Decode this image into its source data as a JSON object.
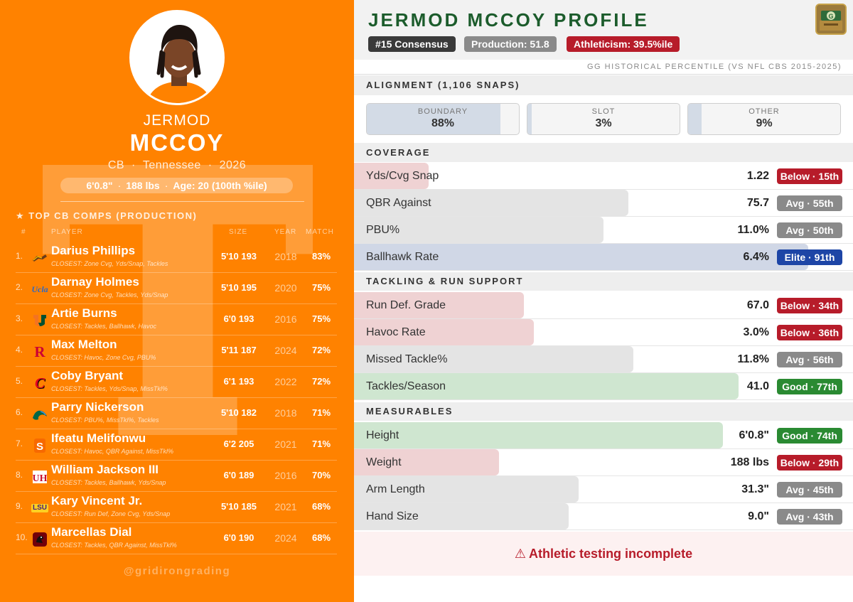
{
  "player": {
    "first_name": "JERMOD",
    "last_name": "MCCOY",
    "position": "CB",
    "school": "Tennessee",
    "class_year": "2026",
    "height": "6'0.8\"",
    "weight": "188 lbs",
    "age": "Age: 20 (100th %ile)"
  },
  "comps": {
    "title": "★ TOP CB COMPS (PRODUCTION)",
    "headers": {
      "num": "#",
      "player": "PLAYER",
      "size": "SIZE",
      "year": "YEAR",
      "match": "MATCH"
    },
    "rows": [
      {
        "num": "1.",
        "name": "Darius Phillips",
        "closest": "CLOSEST: Zone Cvg, Yds/Snap, Tackles",
        "size": "5'10 193",
        "year": "2018",
        "match": "83%",
        "logo_icon": "western-michigan-bronco-icon"
      },
      {
        "num": "2.",
        "name": "Darnay Holmes",
        "closest": "CLOSEST: Zone Cvg, Tackles, Yds/Snap",
        "size": "5'10 195",
        "year": "2020",
        "match": "75%",
        "logo_icon": "ucla-icon",
        "logo_text": "Ucla"
      },
      {
        "num": "3.",
        "name": "Artie Burns",
        "closest": "CLOSEST: Tackles, Ballhawk, Havoc",
        "size": "6'0 193",
        "year": "2016",
        "match": "75%",
        "logo_icon": "miami-u-icon"
      },
      {
        "num": "4.",
        "name": "Max Melton",
        "closest": "CLOSEST: Havoc, Zone Cvg, PBU%",
        "size": "5'11 187",
        "year": "2024",
        "match": "72%",
        "logo_icon": "rutgers-r-icon"
      },
      {
        "num": "5.",
        "name": "Coby Bryant",
        "closest": "CLOSEST: Tackles, Yds/Snap, MissTkl%",
        "size": "6'1 193",
        "year": "2022",
        "match": "72%",
        "logo_icon": "cincinnati-c-icon"
      },
      {
        "num": "6.",
        "name": "Parry Nickerson",
        "closest": "CLOSEST: PBU%, MissTkl%, Tackles",
        "size": "5'10 182",
        "year": "2018",
        "match": "71%",
        "logo_icon": "tulane-wave-icon"
      },
      {
        "num": "7.",
        "name": "Ifeatu Melifonwu",
        "closest": "CLOSEST: Havoc, QBR Against, MissTkl%",
        "size": "6'2 205",
        "year": "2021",
        "match": "71%",
        "logo_icon": "syracuse-s-icon"
      },
      {
        "num": "8.",
        "name": "William Jackson III",
        "closest": "CLOSEST: Tackles, Ballhawk, Yds/Snap",
        "size": "6'0 189",
        "year": "2016",
        "match": "70%",
        "logo_icon": "houston-uh-icon"
      },
      {
        "num": "9.",
        "name": "Kary Vincent Jr.",
        "closest": "CLOSEST: Run Def, Zone Cvg, Yds/Snap",
        "size": "5'10 185",
        "year": "2021",
        "match": "68%",
        "logo_icon": "lsu-icon",
        "logo_text": "LSU"
      },
      {
        "num": "10.",
        "name": "Marcellas Dial",
        "closest": "CLOSEST: Tackles, QBR Against, MissTkl%",
        "size": "6'0 190",
        "year": "2024",
        "match": "68%",
        "logo_icon": "south-carolina-gamecock-icon"
      }
    ]
  },
  "watermark": "@gridirongrading",
  "profile": {
    "title": "JERMOD MCCOY PROFILE",
    "pills": {
      "consensus": "#15 Consensus",
      "production": "Production: 51.8",
      "athleticism": "Athleticism: 39.5%ile"
    },
    "historical_label": "GG HISTORICAL PERCENTILE (VS NFL CBS 2015-2025)"
  },
  "alignment": {
    "title": "ALIGNMENT (1,106 SNAPS)",
    "boxes": [
      {
        "label": "BOUNDARY",
        "value": "88%",
        "share": 0.88
      },
      {
        "label": "SLOT",
        "value": "3%",
        "share": 0.03
      },
      {
        "label": "OTHER",
        "value": "9%",
        "share": 0.09
      }
    ]
  },
  "sections": {
    "coverage": {
      "title": "COVERAGE",
      "rows": [
        {
          "label": "Yds/Cvg Snap",
          "value": "1.22",
          "badge": "Below · 15th",
          "tier": "below",
          "percentile": 15
        },
        {
          "label": "QBR Against",
          "value": "75.7",
          "badge": "Avg · 55th",
          "tier": "avg",
          "percentile": 55
        },
        {
          "label": "PBU%",
          "value": "11.0%",
          "badge": "Avg · 50th",
          "tier": "avg",
          "percentile": 50
        },
        {
          "label": "Ballhawk Rate",
          "value": "6.4%",
          "badge": "Elite · 91th",
          "tier": "elite",
          "percentile": 91
        }
      ]
    },
    "tackling": {
      "title": "TACKLING & RUN SUPPORT",
      "rows": [
        {
          "label": "Run Def. Grade",
          "value": "67.0",
          "badge": "Below · 34th",
          "tier": "below",
          "percentile": 34
        },
        {
          "label": "Havoc Rate",
          "value": "3.0%",
          "badge": "Below · 36th",
          "tier": "below",
          "percentile": 36
        },
        {
          "label": "Missed Tackle%",
          "value": "11.8%",
          "badge": "Avg · 56th",
          "tier": "avg",
          "percentile": 56
        },
        {
          "label": "Tackles/Season",
          "value": "41.0",
          "badge": "Good · 77th",
          "tier": "good",
          "percentile": 77
        }
      ]
    },
    "measurables": {
      "title": "MEASURABLES",
      "rows": [
        {
          "label": "Height",
          "value": "6'0.8\"",
          "badge": "Good · 74th",
          "tier": "good",
          "percentile": 74
        },
        {
          "label": "Weight",
          "value": "188 lbs",
          "badge": "Below · 29th",
          "tier": "below",
          "percentile": 29
        },
        {
          "label": "Arm Length",
          "value": "31.3\"",
          "badge": "Avg · 45th",
          "tier": "avg",
          "percentile": 45
        },
        {
          "label": "Hand Size",
          "value": "9.0\"",
          "badge": "Avg · 43th",
          "tier": "avg",
          "percentile": 43
        }
      ]
    }
  },
  "warning": {
    "icon": "⚠",
    "icon_name": "warning-triangle-icon",
    "text": "Athletic testing incomplete"
  },
  "colors": {
    "tennessee_orange": "#FF8200",
    "title_green": "#1c5c2c",
    "below": "#b71c2a",
    "avg": "#8a8a8a",
    "good": "#2a8a32",
    "elite": "#1d45a6"
  }
}
